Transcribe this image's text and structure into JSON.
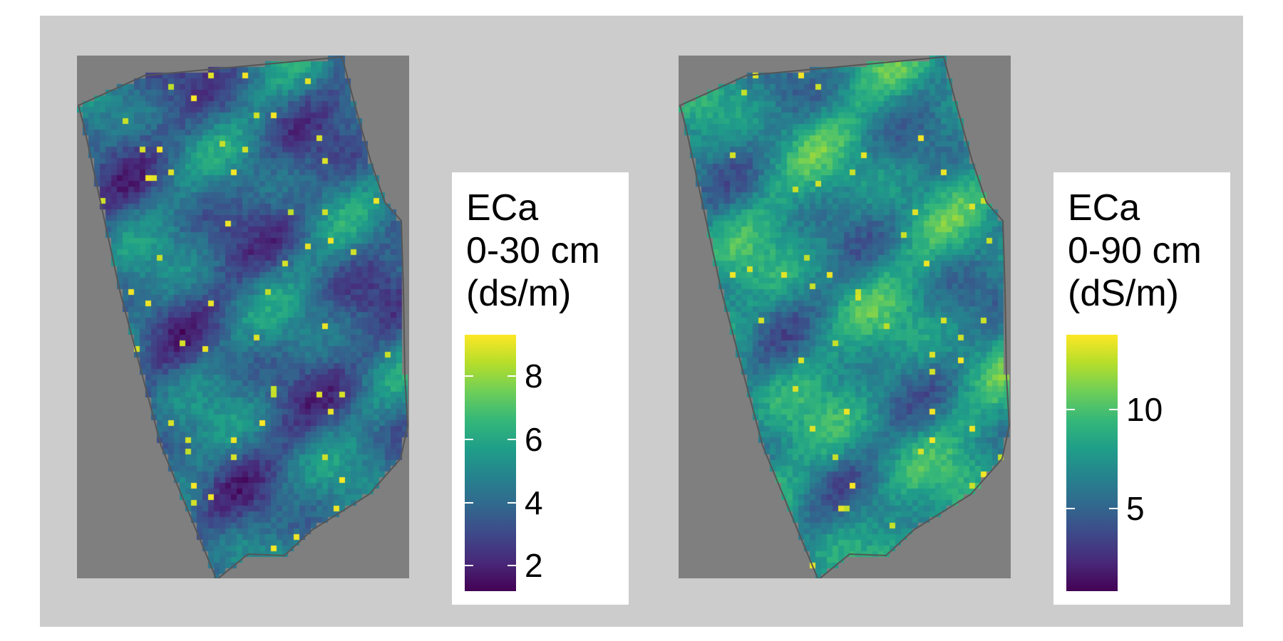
{
  "maps": [
    {
      "legend": {
        "title_lines": [
          "ECa",
          "0-30 cm",
          "(ds/m)"
        ],
        "ticks": [
          {
            "label": "8",
            "value": 8
          },
          {
            "label": "6",
            "value": 6
          },
          {
            "label": "4",
            "value": 4
          },
          {
            "label": "2",
            "value": 2
          }
        ],
        "range": [
          1.2,
          9.3
        ]
      },
      "fill": {
        "colormap": "viridis",
        "typical_level": 0.35,
        "high_spots_level": 0.9
      }
    },
    {
      "legend": {
        "title_lines": [
          "ECa",
          "0-90 cm",
          "(dS/m)"
        ],
        "ticks": [
          {
            "label": "10",
            "value": 10
          },
          {
            "label": "5",
            "value": 5
          }
        ],
        "range": [
          0.8,
          13.8
        ]
      },
      "fill": {
        "colormap": "viridis",
        "typical_level": 0.5,
        "high_spots_level": 0.9
      }
    }
  ],
  "colors": {
    "plot_background": "#cccccc",
    "panel_background": "#7f7f7f",
    "field_outline": "#555555",
    "viridis": [
      "#440154",
      "#482878",
      "#3e4989",
      "#31688e",
      "#26828e",
      "#1f9e89",
      "#35b779",
      "#6ece58",
      "#b5de2b",
      "#fde725"
    ]
  }
}
